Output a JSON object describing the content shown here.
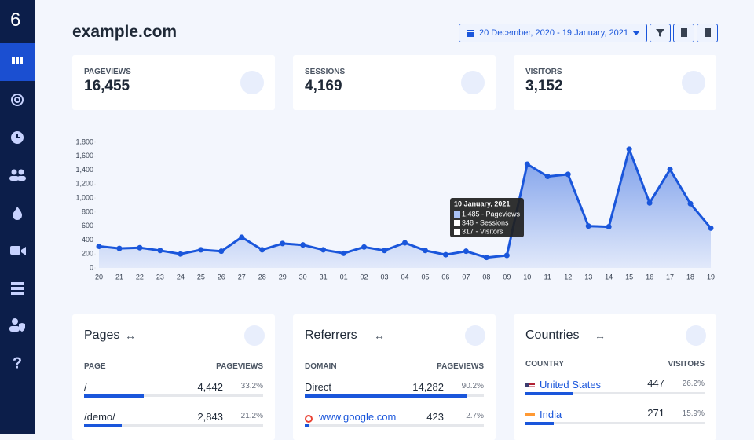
{
  "sidebar": {
    "logo": "6"
  },
  "header": {
    "title": "example.com",
    "date_range": "20 December, 2020 - 19 January, 2021"
  },
  "stats": [
    {
      "label": "PAGEVIEWS",
      "value": "16,455"
    },
    {
      "label": "SESSIONS",
      "value": "4,169"
    },
    {
      "label": "VISITORS",
      "value": "3,152"
    }
  ],
  "chart_data": {
    "type": "area",
    "color": "#1a56db",
    "categories": [
      "20",
      "21",
      "22",
      "23",
      "24",
      "25",
      "26",
      "27",
      "28",
      "29",
      "30",
      "31",
      "01",
      "02",
      "03",
      "04",
      "05",
      "06",
      "07",
      "08",
      "09",
      "10",
      "11",
      "12",
      "13",
      "14",
      "15",
      "16",
      "17",
      "18",
      "19"
    ],
    "values": [
      310,
      280,
      290,
      250,
      200,
      260,
      240,
      440,
      260,
      350,
      330,
      260,
      210,
      300,
      250,
      360,
      250,
      190,
      240,
      150,
      180,
      1485,
      1310,
      1340,
      600,
      590,
      1700,
      930,
      1410,
      920,
      570
    ],
    "ylim": [
      0,
      1800
    ],
    "yticks": [
      0,
      200,
      400,
      600,
      800,
      {
        "value": 1000,
        "label": "1,000"
      },
      {
        "value": 1200,
        "label": "1,200"
      },
      {
        "value": 1400,
        "label": "1,400"
      },
      {
        "value": 1600,
        "label": "1,600"
      },
      {
        "value": 1800,
        "label": "1,800"
      }
    ],
    "tooltip": {
      "title": "10 January, 2021",
      "items": [
        {
          "label": "1,485 - Pageviews",
          "color": "#a9c2f5"
        },
        {
          "label": "348 - Sessions",
          "color": "#ffffff"
        },
        {
          "label": "317 - Visitors",
          "color": "#ffffff"
        }
      ]
    }
  },
  "panels": [
    {
      "title": "Pages",
      "col1": "PAGE",
      "col2": "PAGEVIEWS",
      "rows": [
        {
          "label": "/",
          "value": "4,442",
          "share": 33.2,
          "share_label": "33.2%"
        },
        {
          "label": "/demo/",
          "value": "2,843",
          "share": 21.2,
          "share_label": "21.2%"
        }
      ]
    },
    {
      "title": "Referrers",
      "col1": "DOMAIN",
      "col2": "PAGEVIEWS",
      "rows": [
        {
          "label": "Direct",
          "value": "14,282",
          "share": 90.2,
          "share_label": "90.2%"
        },
        {
          "label": "www.google.com",
          "value": "423",
          "share": 2.7,
          "share_label": "2.7%"
        }
      ]
    },
    {
      "title": "Countries",
      "col1": "COUNTRY",
      "col2": "VISITORS",
      "rows": [
        {
          "label": "United States",
          "value": "447",
          "share": 26.2,
          "share_label": "26.2%"
        },
        {
          "label": "India",
          "value": "271",
          "share": 15.9,
          "share_label": "15.9%"
        }
      ]
    }
  ]
}
